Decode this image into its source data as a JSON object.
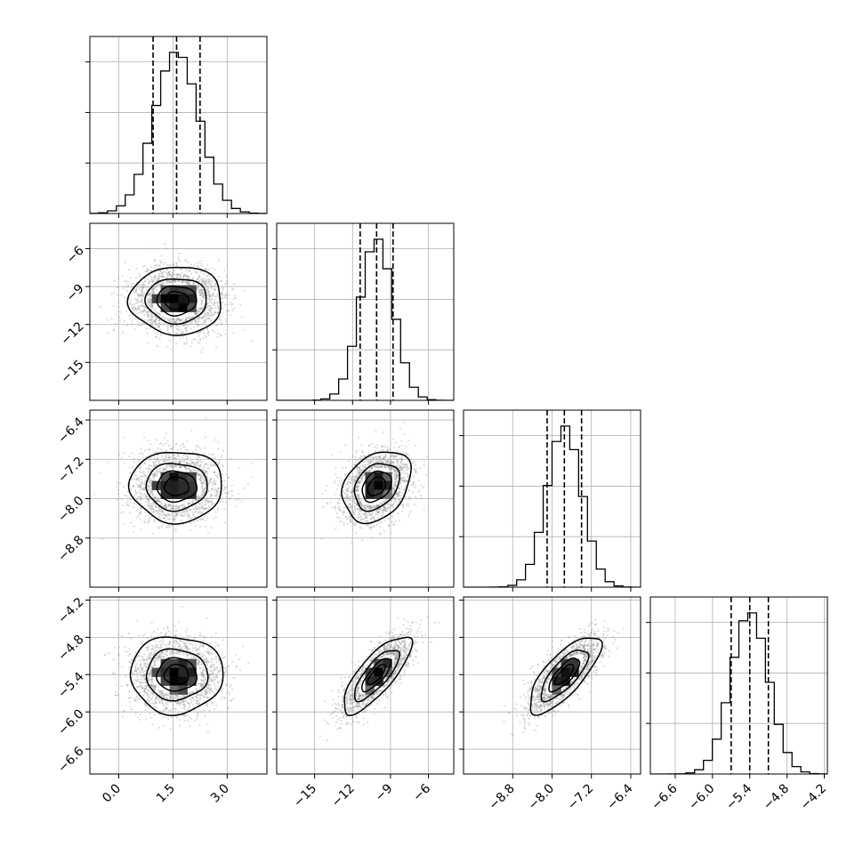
{
  "chart_data": {
    "type": "corner",
    "params": [
      {
        "index": 0,
        "median": 1.6,
        "q16": 0.95,
        "q84": 2.25,
        "sigma": 0.62,
        "range": [
          -0.8,
          4.1
        ],
        "ticks": [
          0.0,
          1.5,
          3.0
        ],
        "tick_labels": [
          "0.0",
          "1.5",
          "3.0"
        ]
      },
      {
        "index": 1,
        "median": -10.1,
        "q16": -11.4,
        "q84": -8.8,
        "sigma": 1.3,
        "range": [
          -18.0,
          -4.0
        ],
        "ticks": [
          -15,
          -12,
          -9,
          -6
        ],
        "tick_labels": [
          "−15",
          "−12",
          "−9",
          "−6"
        ]
      },
      {
        "index": 2,
        "median": -7.75,
        "q16": -8.1,
        "q84": -7.4,
        "sigma": 0.35,
        "range": [
          -9.8,
          -6.2
        ],
        "ticks": [
          -8.8,
          -8.0,
          -7.2,
          -6.4
        ],
        "tick_labels": [
          "−8.8",
          "−8.0",
          "−7.2",
          "−6.4"
        ]
      },
      {
        "index": 3,
        "median": -5.4,
        "q16": -5.7,
        "q84": -5.1,
        "sigma": 0.3,
        "range": [
          -7.0,
          -4.15
        ],
        "ticks": [
          -6.6,
          -6.0,
          -5.4,
          -4.8,
          -4.2
        ],
        "tick_labels": [
          "−6.6",
          "−6.0",
          "−5.4",
          "−4.8",
          "−4.2"
        ]
      }
    ],
    "correlations": {
      "0-1": 0.0,
      "0-2": 0.0,
      "0-3": 0.0,
      "1-2": 0.3,
      "1-3": 0.78,
      "2-3": 0.75
    },
    "histogram_bins": 20,
    "contour_levels_sigma": [
      0.5,
      1.0,
      1.5,
      2.0
    ],
    "grid": true,
    "quantile_line_style": "dashed",
    "colors": {
      "lines": "#000000",
      "points": "#8c8c8c",
      "grid": "#b0b0b0"
    }
  }
}
